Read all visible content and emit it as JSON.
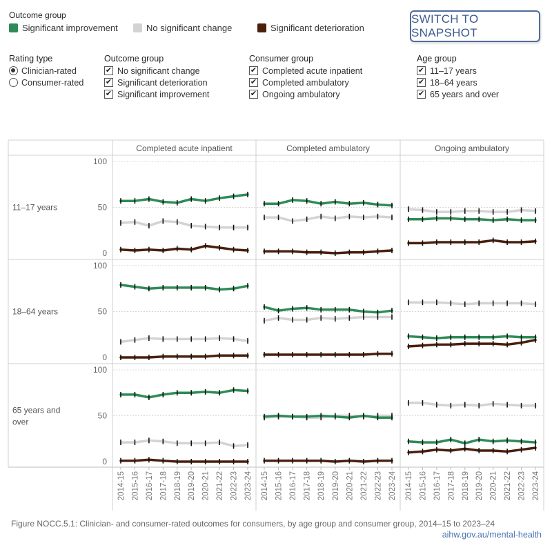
{
  "legend": {
    "title": "Outcome group",
    "items": [
      {
        "label": "Significant improvement",
        "color": "#2e8b57"
      },
      {
        "label": "No significant change",
        "color": "#d3d3d3"
      },
      {
        "label": "Significant deterioration",
        "color": "#4a1f0c"
      }
    ]
  },
  "snapshot_button": "SWITCH TO SNAPSHOT",
  "filters": {
    "rating_type": {
      "title": "Rating type",
      "options": [
        "Clinician-rated",
        "Consumer-rated"
      ],
      "selected": "Clinician-rated"
    },
    "outcome_group": {
      "title": "Outcome group",
      "options": [
        "No significant change",
        "Significant deterioration",
        "Significant improvement"
      ]
    },
    "consumer_group": {
      "title": "Consumer group",
      "options": [
        "Completed acute inpatient",
        "Completed ambulatory",
        "Ongoing ambulatory"
      ]
    },
    "age_group": {
      "title": "Age group",
      "options": [
        "11–17 years",
        "18–64 years",
        "65 years and over"
      ]
    }
  },
  "caption": "Figure NOCC.5.1: Clinician- and consumer-rated outcomes for consumers, by age group and consumer group, 2014–15 to 2023–24",
  "source": "aihw.gov.au/mental-health",
  "chart_data": {
    "type": "line",
    "x": [
      "2014-15",
      "2015-16",
      "2016-17",
      "2017-18",
      "2018-19",
      "2019-20",
      "2020-21",
      "2021-22",
      "2022-23",
      "2023-24"
    ],
    "columns": [
      "Completed acute inpatient",
      "Completed ambulatory",
      "Ongoing ambulatory"
    ],
    "rows": [
      "11–17 years",
      "18–64 years",
      "65 years and over"
    ],
    "y_ticks": [
      0,
      50,
      100
    ],
    "ylim": [
      0,
      100
    ],
    "colors": {
      "Significant improvement": "#2e8b57",
      "No significant change": "#d3d3d3",
      "Significant deterioration": "#4a1f0c"
    },
    "panels": [
      {
        "row": "11–17 years",
        "column": "Completed acute inpatient",
        "series": [
          {
            "name": "Significant improvement",
            "values": [
              57,
              57,
              59,
              56,
              55,
              59,
              57,
              60,
              62,
              64
            ]
          },
          {
            "name": "No significant change",
            "values": [
              33,
              34,
              30,
              35,
              34,
              30,
              29,
              28,
              28,
              28
            ]
          },
          {
            "name": "Significant deterioration",
            "values": [
              4,
              3,
              4,
              3,
              5,
              4,
              8,
              6,
              4,
              3
            ]
          }
        ]
      },
      {
        "row": "11–17 years",
        "column": "Completed ambulatory",
        "series": [
          {
            "name": "Significant improvement",
            "values": [
              54,
              54,
              58,
              57,
              54,
              56,
              54,
              55,
              53,
              52
            ]
          },
          {
            "name": "No significant change",
            "values": [
              39,
              39,
              35,
              37,
              40,
              38,
              40,
              39,
              40,
              39
            ]
          },
          {
            "name": "Significant deterioration",
            "values": [
              2,
              2,
              2,
              1,
              1,
              0,
              1,
              1,
              2,
              3
            ]
          }
        ]
      },
      {
        "row": "11–17 years",
        "column": "Ongoing ambulatory",
        "series": [
          {
            "name": "Significant improvement",
            "values": [
              37,
              37,
              38,
              38,
              37,
              37,
              36,
              37,
              36,
              36
            ]
          },
          {
            "name": "No significant change",
            "values": [
              48,
              47,
              45,
              45,
              46,
              46,
              45,
              45,
              47,
              46
            ]
          },
          {
            "name": "Significant deterioration",
            "values": [
              11,
              11,
              12,
              12,
              12,
              12,
              14,
              12,
              12,
              13
            ]
          }
        ]
      },
      {
        "row": "18–64 years",
        "column": "Completed acute inpatient",
        "series": [
          {
            "name": "Significant improvement",
            "values": [
              79,
              77,
              75,
              76,
              76,
              76,
              76,
              74,
              75,
              78
            ]
          },
          {
            "name": "No significant change",
            "values": [
              17,
              19,
              21,
              20,
              20,
              20,
              20,
              21,
              20,
              18
            ]
          },
          {
            "name": "Significant deterioration",
            "values": [
              0,
              0,
              0,
              1,
              1,
              1,
              1,
              2,
              2,
              2
            ]
          }
        ]
      },
      {
        "row": "18–64 years",
        "column": "Completed ambulatory",
        "series": [
          {
            "name": "Significant improvement",
            "values": [
              55,
              51,
              53,
              54,
              52,
              52,
              52,
              50,
              49,
              51
            ]
          },
          {
            "name": "No significant change",
            "values": [
              40,
              43,
              41,
              41,
              43,
              42,
              43,
              44,
              44,
              44
            ]
          },
          {
            "name": "Significant deterioration",
            "values": [
              3,
              3,
              3,
              3,
              3,
              3,
              3,
              3,
              4,
              4
            ]
          }
        ]
      },
      {
        "row": "18–64 years",
        "column": "Ongoing ambulatory",
        "series": [
          {
            "name": "Significant improvement",
            "values": [
              23,
              22,
              21,
              22,
              22,
              22,
              22,
              23,
              22,
              22
            ]
          },
          {
            "name": "No significant change",
            "values": [
              60,
              60,
              60,
              59,
              58,
              59,
              59,
              59,
              59,
              58
            ]
          },
          {
            "name": "Significant deterioration",
            "values": [
              12,
              13,
              14,
              14,
              15,
              15,
              15,
              14,
              16,
              19
            ]
          }
        ]
      },
      {
        "row": "65 years and over",
        "column": "Completed acute inpatient",
        "series": [
          {
            "name": "Significant improvement",
            "values": [
              73,
              73,
              70,
              73,
              75,
              75,
              76,
              75,
              78,
              77
            ]
          },
          {
            "name": "No significant change",
            "values": [
              21,
              21,
              23,
              22,
              20,
              20,
              20,
              21,
              17,
              18
            ]
          },
          {
            "name": "Significant deterioration",
            "values": [
              1,
              1,
              2,
              1,
              0,
              0,
              0,
              0,
              0,
              0
            ]
          }
        ]
      },
      {
        "row": "65 years and over",
        "column": "Completed ambulatory",
        "series": [
          {
            "name": "Significant improvement",
            "values": [
              49,
              50,
              49,
              49,
              50,
              49,
              48,
              50,
              48,
              48
            ]
          },
          {
            "name": "No significant change",
            "values": [
              48,
              49,
              49,
              48,
              48,
              50,
              50,
              49,
              50,
              50
            ]
          },
          {
            "name": "Significant deterioration",
            "values": [
              1,
              1,
              1,
              1,
              1,
              0,
              1,
              0,
              1,
              1
            ]
          }
        ]
      },
      {
        "row": "65 years and over",
        "column": "Ongoing ambulatory",
        "series": [
          {
            "name": "Significant improvement",
            "values": [
              22,
              21,
              21,
              24,
              20,
              24,
              22,
              23,
              22,
              21
            ]
          },
          {
            "name": "No significant change",
            "values": [
              64,
              64,
              62,
              61,
              62,
              61,
              63,
              62,
              61,
              61
            ]
          },
          {
            "name": "Significant deterioration",
            "values": [
              10,
              11,
              13,
              12,
              14,
              12,
              12,
              11,
              13,
              15
            ]
          }
        ]
      }
    ]
  }
}
